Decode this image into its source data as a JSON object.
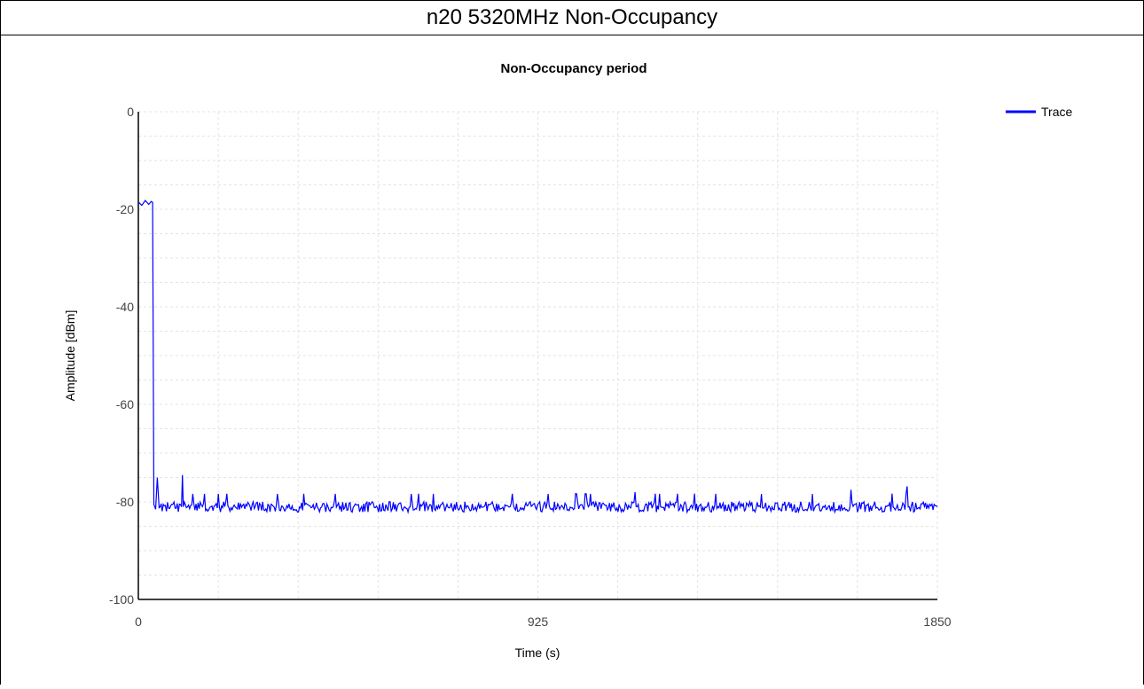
{
  "header": {
    "title": "n20 5320MHz Non-Occupancy"
  },
  "chart_data": {
    "type": "line",
    "title": "Non-Occupancy period",
    "xlabel": "Time (s)",
    "ylabel": "Amplitude [dBm]",
    "xlim": [
      0,
      1850
    ],
    "ylim": [
      -100,
      0
    ],
    "x_ticks": [
      "0",
      "925",
      "1850"
    ],
    "y_ticks": [
      "0",
      "-20",
      "-40",
      "-60",
      "-80",
      "-100"
    ],
    "grid": true,
    "legend_position": "top-right",
    "series": [
      {
        "name": "Trace",
        "color": "#0000ff",
        "points": [
          [
            0,
            -18.5
          ],
          [
            8,
            -19.2
          ],
          [
            16,
            -18.2
          ],
          [
            24,
            -19.0
          ],
          [
            30,
            -18.4
          ],
          [
            33,
            -18.6
          ],
          [
            36,
            -80.5
          ],
          [
            40,
            -81.5
          ],
          [
            44,
            -75.0
          ],
          [
            48,
            -81.2
          ],
          [
            60,
            -80.8
          ],
          [
            100,
            -81.0
          ],
          [
            102,
            -74.5
          ],
          [
            104,
            -81.0
          ],
          [
            200,
            -81.0
          ],
          [
            300,
            -80.5
          ],
          [
            400,
            -81.2
          ],
          [
            500,
            -80.8
          ],
          [
            600,
            -81.0
          ],
          [
            700,
            -80.6
          ],
          [
            800,
            -81.0
          ],
          [
            900,
            -80.8
          ],
          [
            1000,
            -81.1
          ],
          [
            1150,
            -78.0
          ],
          [
            1155,
            -81.0
          ],
          [
            1300,
            -80.7
          ],
          [
            1450,
            -81.0
          ],
          [
            1600,
            -80.8
          ],
          [
            1650,
            -77.5
          ],
          [
            1655,
            -80.9
          ],
          [
            1700,
            -81.0
          ],
          [
            1780,
            -76.8
          ],
          [
            1785,
            -81.0
          ],
          [
            1850,
            -81.0
          ]
        ]
      }
    ]
  }
}
